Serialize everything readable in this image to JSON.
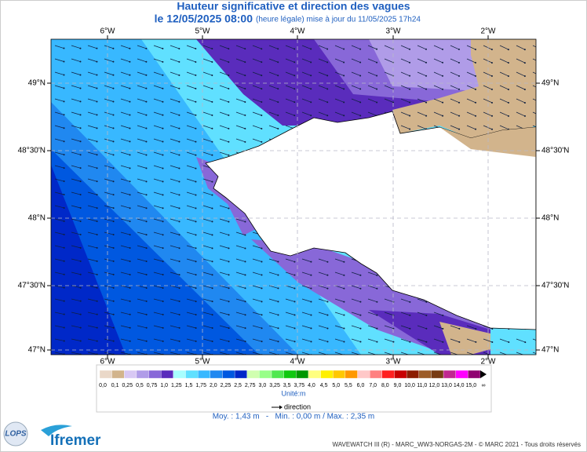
{
  "header": {
    "title": "Hauteur significative et direction des vagues",
    "date": "le 12/05/2025 08:00",
    "note": "(heure légale) mise à jour du 11/05/2025 17h24"
  },
  "map": {
    "lon_labels": [
      "6°W",
      "5°W",
      "4°W",
      "3°W",
      "2°W"
    ],
    "lat_labels": [
      "49°N",
      "48°30'N",
      "48°N",
      "47°30'N",
      "47°N"
    ]
  },
  "legend": {
    "labels": [
      "0,0",
      "0,1",
      "0,25",
      "0,5",
      "0,75",
      "1,0",
      "1,25",
      "1,5",
      "1,75",
      "2,0",
      "2,25",
      "2,5",
      "2,75",
      "3,0",
      "3,25",
      "3,5",
      "3,75",
      "4,0",
      "4,5",
      "5,0",
      "5,5",
      "6,0",
      "7,0",
      "8,0",
      "9,0",
      "10,0",
      "11,0",
      "12,0",
      "13,0",
      "14,0",
      "15,0",
      "∞"
    ],
    "colors": [
      "#ead8c8",
      "#d2b48c",
      "#d8c8f4",
      "#b09ce8",
      "#8868d8",
      "#5a2cbc",
      "#a8ffff",
      "#60e0ff",
      "#38b8ff",
      "#2088f0",
      "#0058e0",
      "#0028c8",
      "#d0ffb0",
      "#98ff88",
      "#50e850",
      "#10c810",
      "#009800",
      "#ffff80",
      "#fff000",
      "#ffc800",
      "#ff9800",
      "#ffc8c8",
      "#ff8080",
      "#ff2020",
      "#c80000",
      "#8c1c00",
      "#9c5c28",
      "#783c14",
      "#c02890",
      "#ff00ff",
      "#900070"
    ],
    "unit": "Unité:m",
    "direction": "direction"
  },
  "stats": "Moy. : 1,43 m   -   Min. : 0,00 m / Max. : 2,35 m",
  "footer": "WAVEWATCH III (R) - MARC_WW3-NORGAS-2M - © MARC 2021 - Tous droits réservés",
  "logos": {
    "lops": "LOPS",
    "ifremer": "Ifremer"
  }
}
